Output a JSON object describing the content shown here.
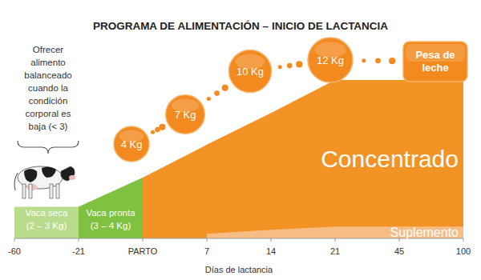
{
  "chart_data": {
    "type": "area",
    "title": "PROGRAMA DE ALIMENTACIÓN – INICIO DE LACTANCIA",
    "x_label": "Días de lactancia",
    "categories": [
      "-60",
      "-21",
      "PARTO",
      "7",
      "14",
      "21",
      "45",
      "100"
    ],
    "ylim": [
      0,
      14
    ],
    "tick_labels": "x",
    "series": [
      {
        "name": "Vaca seca",
        "sublabel": "(2 – 3 Kg)",
        "color": "#b9dc8c",
        "values": [
          2.4,
          2.4,
          null,
          null,
          null,
          null,
          null,
          null
        ]
      },
      {
        "name": "Vaca pronta",
        "sublabel": "(3 – 4 Kg)",
        "color": "#7fc241",
        "values": [
          null,
          2.4,
          4.6,
          null,
          null,
          null,
          null,
          null
        ]
      },
      {
        "name": "Concentrado",
        "color": "#f39325",
        "values": [
          null,
          null,
          4.6,
          7.1,
          9.5,
          12,
          12,
          12
        ]
      },
      {
        "name": "Suplemento",
        "color": "#f8bd85",
        "values": [
          null,
          null,
          null,
          0.35,
          0.65,
          0.9,
          0.9,
          0.9
        ]
      }
    ],
    "note_lines": [
      "Ofrecer",
      "alimento",
      "balanceado",
      "cuando la",
      "condición",
      "corporal es",
      "baja (< 3)"
    ],
    "milk": {
      "title_lines": [
        "Pesa de",
        "leche"
      ],
      "values": [
        4,
        7,
        10,
        12
      ],
      "value_labels": [
        "4 Kg",
        "7 Kg",
        "10 Kg",
        "12 Kg"
      ],
      "color": "#f28a1f"
    }
  }
}
